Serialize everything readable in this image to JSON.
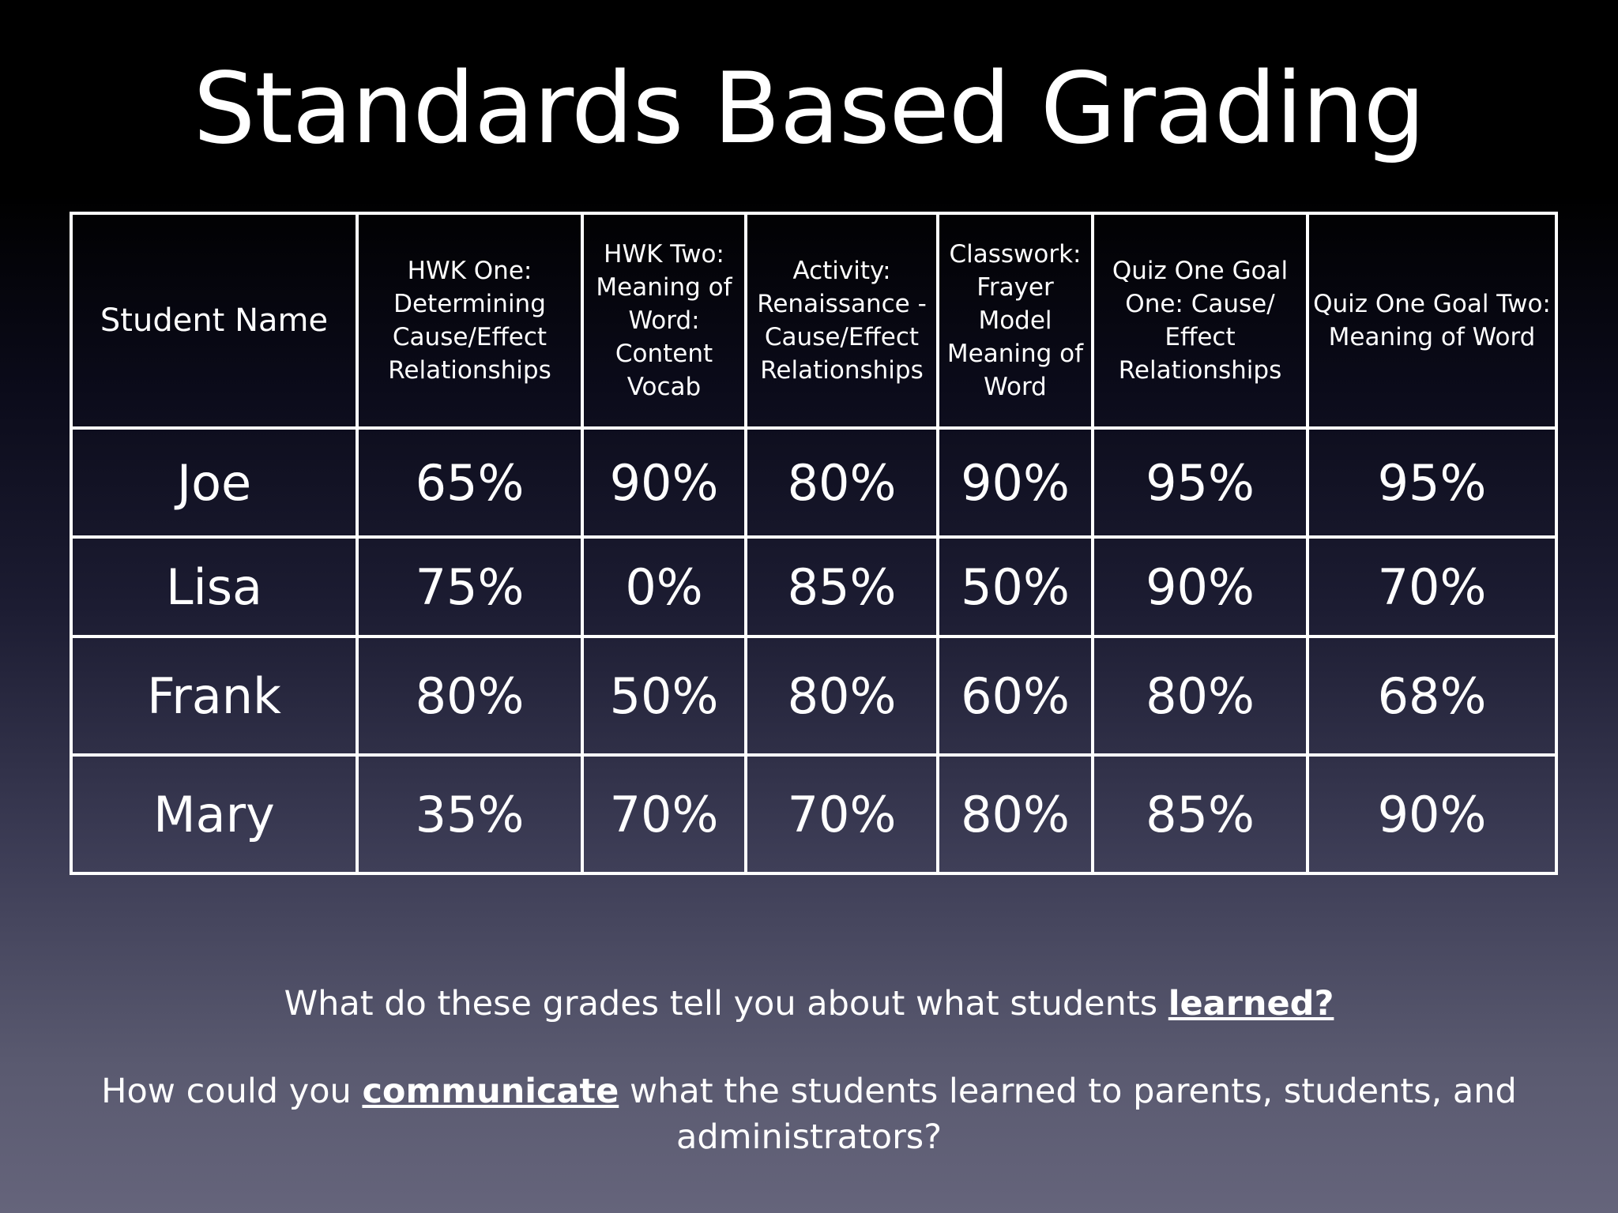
{
  "slide": {
    "title": "Standards Based Grading"
  },
  "table": {
    "headers": [
      "Student Name",
      "HWK One: Determining Cause/Effect Relationships",
      "HWK Two: Meaning of Word: Content Vocab",
      "Activity: Renaissance - Cause/Effect Relationships",
      "Classwork: Frayer Model Meaning of Word",
      "Quiz One Goal One: Cause/ Effect Relationships",
      "Quiz One Goal Two: Meaning of Word"
    ],
    "rows": [
      [
        "Joe",
        "65%",
        "90%",
        "80%",
        "90%",
        "95%",
        "95%"
      ],
      [
        "Lisa",
        "75%",
        "0%",
        "85%",
        "50%",
        "90%",
        "70%"
      ],
      [
        "Frank",
        "80%",
        "50%",
        "80%",
        "60%",
        "80%",
        "68%"
      ],
      [
        "Mary",
        "35%",
        "70%",
        "70%",
        "80%",
        "85%",
        "90%"
      ]
    ]
  },
  "questions": {
    "q1_before": "What do these grades tell you about what students ",
    "q1_emphasis": "learned?",
    "q2_before": "How could you ",
    "q2_emphasis": "communicate",
    "q2_after": " what the students learned to parents, students, and administrators?"
  }
}
